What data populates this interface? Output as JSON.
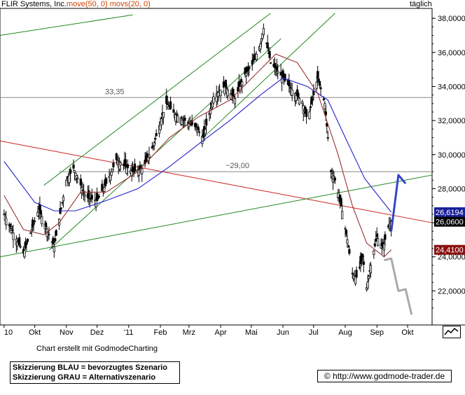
{
  "header": {
    "company": "FLIR Systems, Inc.",
    "ma_label": "move(50, 0) movs(20, 0)",
    "interval": "täglich"
  },
  "footer": {
    "credit": "Chart erstellt mit GodmodeCharting",
    "legend_blue": "Skizzierung BLAU = bevorzugtes Szenario",
    "legend_gray": "Skizzierung GRAU = Alternativszenario",
    "url": "© http://www.godmode-trader.de"
  },
  "colors": {
    "ma50": "#2222cc",
    "ma20": "#993333",
    "trend_red": "#cc2222",
    "trend_green": "#228822",
    "scenario_blue": "#3344cc",
    "scenario_gray": "#aaaaaa",
    "label_blue_bg": "#1a2299",
    "label_dark_bg": "#000000",
    "label_red_bg": "#8b1111"
  },
  "chart_data": {
    "type": "candlestick",
    "title": "FLIR Systems, Inc.",
    "ylim": [
      20.0,
      38.5
    ],
    "y_ticks": [
      "38,0000",
      "36,0000",
      "34,0000",
      "32,0000",
      "30,0000",
      "28,0000",
      "26,0000",
      "24,0000",
      "22,0000"
    ],
    "x_ticks": [
      "10",
      "Okt",
      "Nov",
      "Dez",
      "'11",
      "Feb",
      "Mrz",
      "Apr",
      "Mai",
      "Jun",
      "Jul",
      "Aug",
      "Sep",
      "Okt"
    ],
    "horizontal_levels": [
      {
        "label": "33,35",
        "value": 33.35
      },
      {
        "label": "~29,00",
        "value": 29.0
      }
    ],
    "price_labels": [
      {
        "text": "26,6194",
        "value": 26.62,
        "role": "MA50"
      },
      {
        "text": "26,0600",
        "value": 26.06,
        "role": "last"
      },
      {
        "text": "24,4100",
        "value": 24.41,
        "role": "MA20"
      }
    ],
    "price_path": [
      [
        "2010-09-01",
        26.5
      ],
      [
        "2010-09-20",
        24.2
      ],
      [
        "2010-10-05",
        26.8
      ],
      [
        "2010-10-20",
        24.6
      ],
      [
        "2010-11-01",
        28.5
      ],
      [
        "2010-11-08",
        29.2
      ],
      [
        "2010-11-20",
        27.5
      ],
      [
        "2010-12-01",
        27.3
      ],
      [
        "2010-12-10",
        28.3
      ],
      [
        "2010-12-20",
        29.7
      ],
      [
        "2011-01-05",
        29.0
      ],
      [
        "2011-01-15",
        29.2
      ],
      [
        "2011-01-25",
        30.5
      ],
      [
        "2011-02-03",
        32.3
      ],
      [
        "2011-02-07",
        33.0
      ],
      [
        "2011-02-15",
        32.4
      ],
      [
        "2011-02-25",
        32.0
      ],
      [
        "2011-03-08",
        31.6
      ],
      [
        "2011-03-15",
        31.0
      ],
      [
        "2011-03-25",
        33.4
      ],
      [
        "2011-04-05",
        34.0
      ],
      [
        "2011-04-15",
        33.3
      ],
      [
        "2011-04-25",
        34.7
      ],
      [
        "2011-05-02",
        35.3
      ],
      [
        "2011-05-10",
        36.5
      ],
      [
        "2011-05-13",
        37.4
      ],
      [
        "2011-05-20",
        35.4
      ],
      [
        "2011-06-01",
        34.5
      ],
      [
        "2011-06-10",
        33.8
      ],
      [
        "2011-06-20",
        33.1
      ],
      [
        "2011-06-25",
        32.0
      ],
      [
        "2011-07-01",
        33.5
      ],
      [
        "2011-07-05",
        34.5
      ],
      [
        "2011-07-12",
        33.0
      ],
      [
        "2011-07-18",
        29.0
      ],
      [
        "2011-07-22",
        28.5
      ],
      [
        "2011-07-28",
        27.0
      ],
      [
        "2011-08-03",
        25.0
      ],
      [
        "2011-08-08",
        23.0
      ],
      [
        "2011-08-12",
        22.8
      ],
      [
        "2011-08-18",
        24.0
      ],
      [
        "2011-08-22",
        22.2
      ],
      [
        "2011-08-26",
        23.5
      ],
      [
        "2011-09-01",
        25.2
      ],
      [
        "2011-09-07",
        24.5
      ],
      [
        "2011-09-12",
        25.8
      ],
      [
        "2011-09-15",
        26.06
      ]
    ],
    "ma50": [
      [
        "2010-09-01",
        29.6
      ],
      [
        "2010-10-01",
        27.2
      ],
      [
        "2010-10-20",
        26.7
      ],
      [
        "2010-11-10",
        26.7
      ],
      [
        "2010-12-10",
        27.3
      ],
      [
        "2011-01-10",
        28.0
      ],
      [
        "2011-02-10",
        29.3
      ],
      [
        "2011-03-10",
        30.6
      ],
      [
        "2011-04-10",
        32.0
      ],
      [
        "2011-05-10",
        33.5
      ],
      [
        "2011-06-01",
        34.5
      ],
      [
        "2011-06-25",
        34.0
      ],
      [
        "2011-07-15",
        33.2
      ],
      [
        "2011-08-01",
        31.0
      ],
      [
        "2011-08-20",
        28.6
      ],
      [
        "2011-09-15",
        26.62
      ]
    ],
    "ma20": [
      [
        "2010-09-01",
        27.6
      ],
      [
        "2010-09-20",
        25.6
      ],
      [
        "2010-10-10",
        25.3
      ],
      [
        "2010-10-25",
        26.0
      ],
      [
        "2010-11-15",
        27.8
      ],
      [
        "2010-12-10",
        27.8
      ],
      [
        "2011-01-10",
        29.0
      ],
      [
        "2011-02-10",
        31.0
      ],
      [
        "2011-03-10",
        32.2
      ],
      [
        "2011-04-10",
        33.2
      ],
      [
        "2011-05-10",
        35.0
      ],
      [
        "2011-05-25",
        35.9
      ],
      [
        "2011-06-15",
        35.4
      ],
      [
        "2011-07-05",
        33.6
      ],
      [
        "2011-07-25",
        30.0
      ],
      [
        "2011-08-08",
        27.0
      ],
      [
        "2011-08-22",
        24.8
      ],
      [
        "2011-09-08",
        24.0
      ],
      [
        "2011-09-15",
        24.41
      ]
    ],
    "scenario_blue": [
      [
        "2011-09-15",
        25.5
      ],
      [
        "2011-09-22",
        28.8
      ],
      [
        "2011-09-29",
        28.3
      ]
    ],
    "scenario_gray": [
      [
        "2011-09-08",
        23.8
      ],
      [
        "2011-09-15",
        23.9
      ],
      [
        "2011-09-22",
        22.0
      ],
      [
        "2011-09-29",
        22.1
      ],
      [
        "2011-10-05",
        20.6
      ]
    ]
  }
}
